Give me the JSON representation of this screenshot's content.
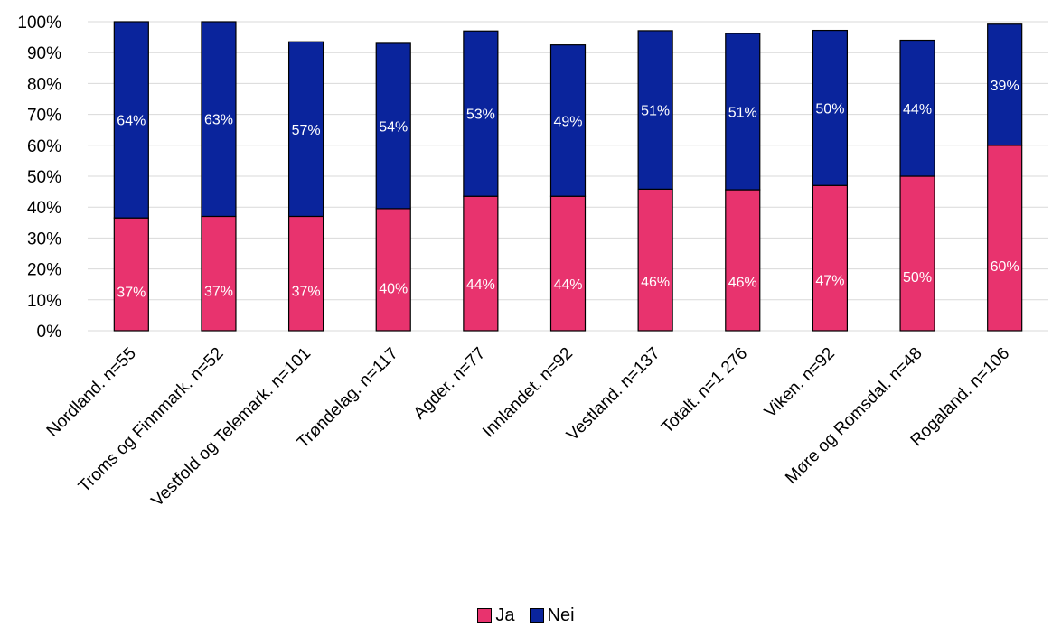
{
  "chart_data": {
    "type": "bar",
    "stacked": true,
    "title": "",
    "xlabel": "",
    "ylabel": "",
    "ylim": [
      0,
      100
    ],
    "y_ticks": [
      "0%",
      "10%",
      "20%",
      "30%",
      "40%",
      "50%",
      "60%",
      "70%",
      "80%",
      "90%",
      "100%"
    ],
    "grid": true,
    "legend": "bottom",
    "categories": [
      "Nordland. n=55",
      "Troms og Finnmark. n=52",
      "Vestfold og Telemark. n=101",
      "Trøndelag. n=117",
      "Agder. n=77",
      "Innlandet. n=92",
      "Vestland. n=137",
      "Totalt. n=1 276",
      "Viken. n=92",
      "Møre og Romsdal. n=48",
      "Rogaland. n=106"
    ],
    "series": [
      {
        "name": "Ja",
        "color": "#e8336e",
        "values": [
          36.5,
          37,
          37,
          39.5,
          43.5,
          43.5,
          45.8,
          45.6,
          47,
          50,
          60
        ],
        "labels": [
          "37%",
          "37%",
          "37%",
          "40%",
          "44%",
          "44%",
          "46%",
          "46%",
          "47%",
          "50%",
          "60%"
        ]
      },
      {
        "name": "Nei",
        "color": "#0a249c",
        "values": [
          63.5,
          63,
          56.5,
          53.5,
          53.5,
          49,
          51.3,
          50.6,
          50.2,
          44,
          39.2
        ],
        "labels": [
          "64%",
          "63%",
          "57%",
          "54%",
          "53%",
          "49%",
          "51%",
          "51%",
          "50%",
          "44%",
          "39%"
        ]
      }
    ]
  }
}
